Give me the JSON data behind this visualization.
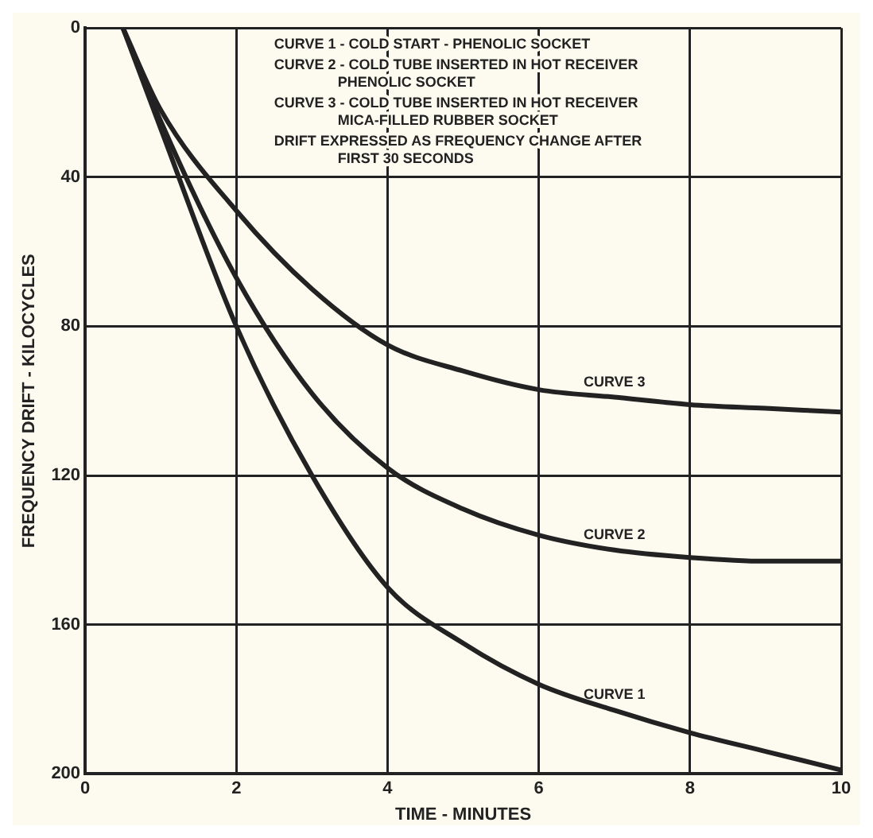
{
  "chart_data": {
    "type": "line",
    "xlabel": "TIME - MINUTES",
    "ylabel": "FREQUENCY DRIFT - KILOCYCLES",
    "annotations": [
      "CURVE 1 - COLD START - PHENOLIC SOCKET",
      "CURVE 2 - COLD TUBE INSERTED IN HOT RECEIVER\nPHENOLIC SOCKET",
      "CURVE 3 - COLD TUBE INSERTED IN HOT RECEIVER\nMICA-FILLED RUBBER SOCKET",
      "DRIFT EXPRESSED AS FREQUENCY CHANGE AFTER\nFIRST 30 SECONDS"
    ],
    "x": [
      0.5,
      1,
      2,
      3,
      4,
      5,
      6,
      7,
      8,
      9,
      10
    ],
    "series": [
      {
        "name": "CURVE 1",
        "color": "#222222",
        "values": [
          0,
          27,
          80,
          120,
          150,
          165,
          176,
          183,
          189,
          194,
          199
        ]
      },
      {
        "name": "CURVE 2",
        "color": "#222222",
        "values": [
          0,
          25,
          67,
          98,
          118,
          129,
          136,
          140,
          142,
          143,
          143
        ]
      },
      {
        "name": "CURVE 3",
        "color": "#222222",
        "values": [
          0,
          22,
          49,
          70,
          85,
          92,
          97,
          99,
          101,
          102,
          103
        ]
      }
    ],
    "xlim": [
      0,
      10
    ],
    "xticks": [
      0,
      2,
      4,
      6,
      8,
      10
    ],
    "ylim": [
      200,
      0
    ],
    "yticks": [
      0,
      40,
      80,
      120,
      160,
      200
    ],
    "grid": true,
    "marker": "none",
    "line_style": "solid",
    "legend": false
  }
}
